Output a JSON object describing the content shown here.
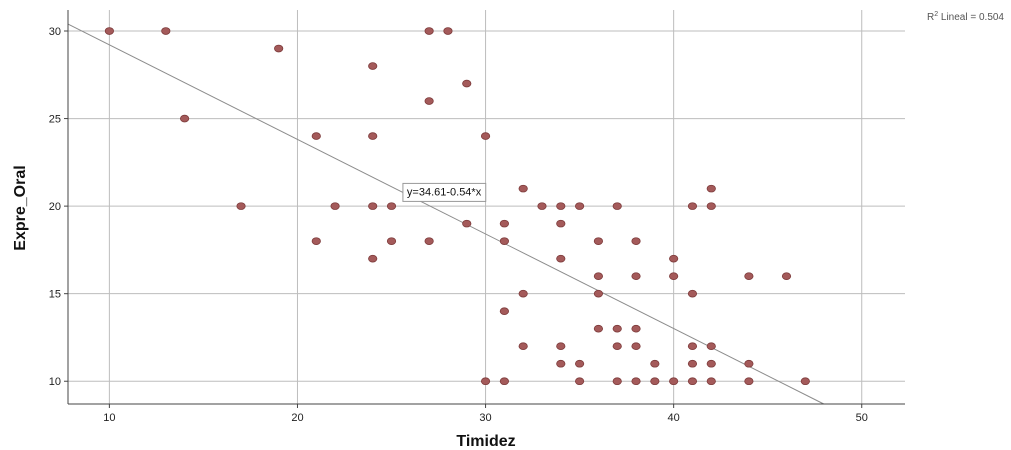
{
  "chart_data": {
    "type": "scatter",
    "xlabel": "Timidez",
    "ylabel": "Expre_Oral",
    "xlim": [
      7.8,
      52.3
    ],
    "ylim": [
      8.7,
      31.2
    ],
    "xticks": [
      10,
      20,
      30,
      40,
      50
    ],
    "yticks": [
      10,
      15,
      20,
      25,
      30
    ],
    "grid": true,
    "r2_label": {
      "prefix": "R",
      "sup": "2",
      "text": " Lineal = 0.504"
    },
    "fit": {
      "intercept": 34.61,
      "slope": -0.54,
      "label": "y=34.61-0.54*x",
      "label_at_x": 25.5
    },
    "colors": {
      "marker_fill": "#a45a5a",
      "marker_stroke": "#7d3b3b",
      "fit_line": "#8c8c8c",
      "grid": "#bdbdbd",
      "axis": "#444444"
    },
    "points": [
      [
        10,
        30
      ],
      [
        13,
        30
      ],
      [
        27,
        30
      ],
      [
        28,
        30
      ],
      [
        19,
        29
      ],
      [
        24,
        28
      ],
      [
        29,
        27
      ],
      [
        27,
        26
      ],
      [
        14,
        25
      ],
      [
        21,
        24
      ],
      [
        24,
        24
      ],
      [
        30,
        24
      ],
      [
        32,
        21
      ],
      [
        42,
        21
      ],
      [
        17,
        20
      ],
      [
        22,
        20
      ],
      [
        24,
        20
      ],
      [
        25,
        20
      ],
      [
        33,
        20
      ],
      [
        34,
        20
      ],
      [
        35,
        20
      ],
      [
        37,
        20
      ],
      [
        41,
        20
      ],
      [
        42,
        20
      ],
      [
        29,
        19
      ],
      [
        31,
        19
      ],
      [
        34,
        19
      ],
      [
        21,
        18
      ],
      [
        25,
        18
      ],
      [
        27,
        18
      ],
      [
        31,
        18
      ],
      [
        36,
        18
      ],
      [
        38,
        18
      ],
      [
        24,
        17
      ],
      [
        34,
        17
      ],
      [
        40,
        17
      ],
      [
        36,
        16
      ],
      [
        38,
        16
      ],
      [
        40,
        16
      ],
      [
        44,
        16
      ],
      [
        46,
        16
      ],
      [
        32,
        15
      ],
      [
        36,
        15
      ],
      [
        41,
        15
      ],
      [
        31,
        14
      ],
      [
        36,
        13
      ],
      [
        37,
        13
      ],
      [
        38,
        13
      ],
      [
        32,
        12
      ],
      [
        34,
        12
      ],
      [
        37,
        12
      ],
      [
        38,
        12
      ],
      [
        41,
        12
      ],
      [
        42,
        12
      ],
      [
        34,
        11
      ],
      [
        35,
        11
      ],
      [
        39,
        11
      ],
      [
        41,
        11
      ],
      [
        42,
        11
      ],
      [
        44,
        11
      ],
      [
        30,
        10
      ],
      [
        31,
        10
      ],
      [
        35,
        10
      ],
      [
        37,
        10
      ],
      [
        38,
        10
      ],
      [
        39,
        10
      ],
      [
        40,
        10
      ],
      [
        41,
        10
      ],
      [
        42,
        10
      ],
      [
        44,
        10
      ],
      [
        47,
        10
      ]
    ]
  }
}
